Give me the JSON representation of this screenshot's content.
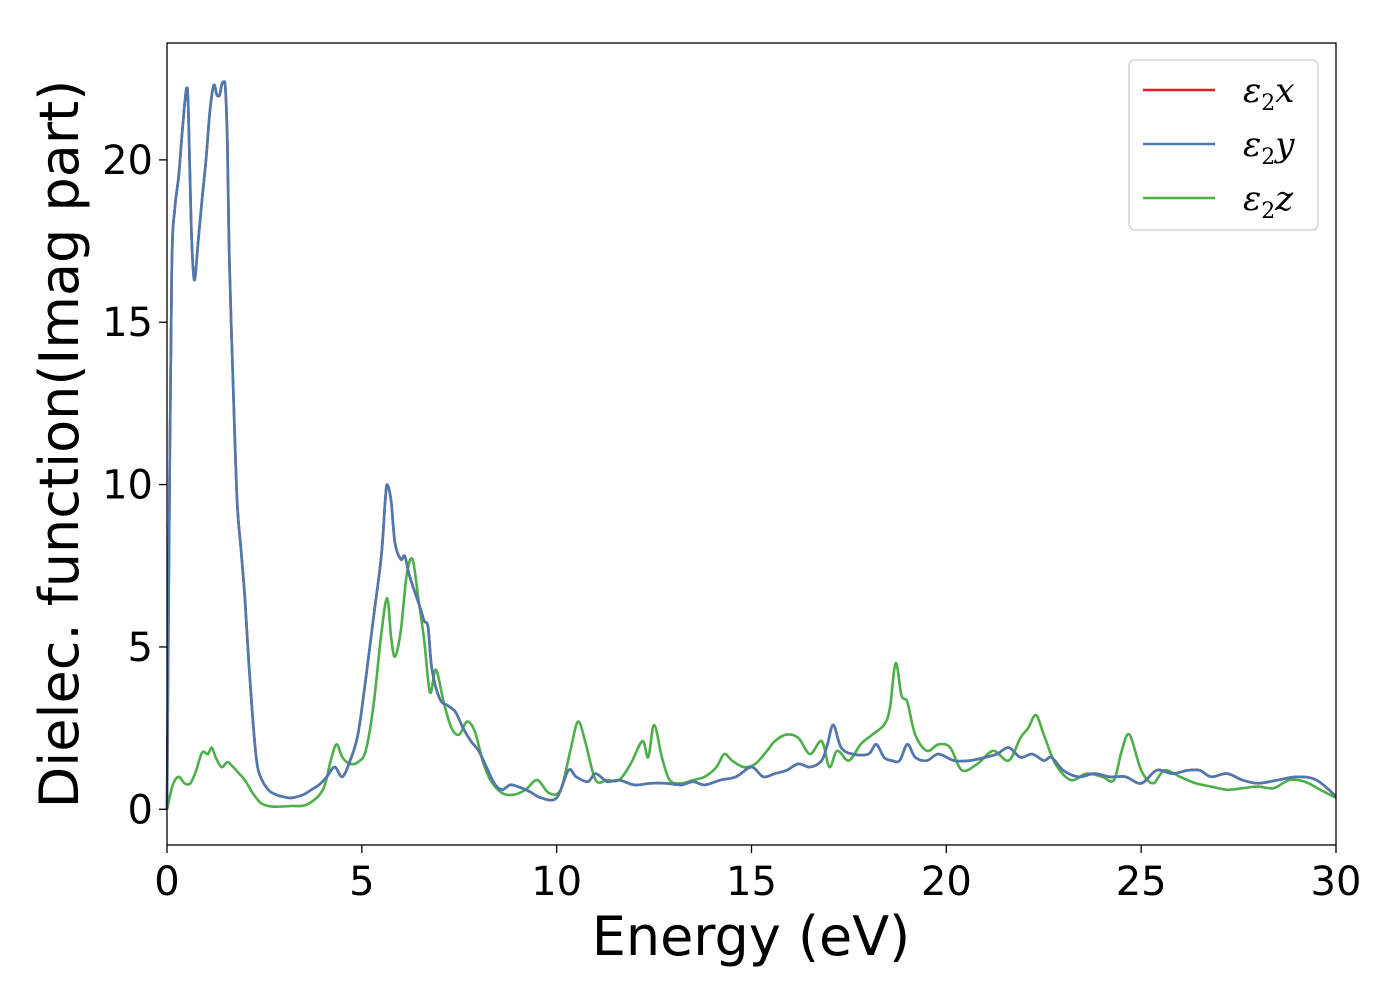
{
  "chart_data": {
    "type": "line",
    "xlabel": "Energy (eV)",
    "ylabel": "Dielec. function(Imag part)",
    "xlim": [
      0,
      30
    ],
    "ylim": [
      -1.1,
      23.6
    ],
    "xticks": [
      "0",
      "5",
      "10",
      "15",
      "20",
      "25",
      "30"
    ],
    "yticks": [
      "0",
      "5",
      "10",
      "15",
      "20"
    ],
    "grid": false,
    "legend_position": "top-right",
    "series": [
      {
        "name": "ε2x",
        "legend_base": "ε",
        "legend_sub": "2",
        "legend_suffix": "x",
        "color": "#e41a1c",
        "x": [
          0,
          0.05,
          0.12,
          0.2,
          0.3,
          0.4,
          0.5,
          0.55,
          0.62,
          0.7,
          0.8,
          0.9,
          1.0,
          1.1,
          1.2,
          1.28,
          1.35,
          1.4,
          1.45,
          1.5,
          1.55,
          1.6,
          1.7,
          1.8,
          1.9,
          2.0,
          2.1,
          2.2,
          2.3,
          2.4,
          2.6,
          2.8,
          3.0,
          3.2,
          3.5,
          3.7,
          3.9,
          4.1,
          4.3,
          4.5,
          4.7,
          4.9,
          5.1,
          5.3,
          5.5,
          5.6,
          5.65,
          5.75,
          5.85,
          6.0,
          6.1,
          6.2,
          6.3,
          6.5,
          6.6,
          6.7,
          6.8,
          7.0,
          7.2,
          7.4,
          7.6,
          7.8,
          8.0,
          8.2,
          8.4,
          8.6,
          8.8,
          9.0,
          9.3,
          9.6,
          10.0,
          10.3,
          10.5,
          10.8,
          11.0,
          11.3,
          11.6,
          12.0,
          12.4,
          12.8,
          13.2,
          13.5,
          13.8,
          14.2,
          14.6,
          15.0,
          15.3,
          15.6,
          15.9,
          16.2,
          16.5,
          16.8,
          16.95,
          17.1,
          17.3,
          17.6,
          18.0,
          18.2,
          18.4,
          18.6,
          18.8,
          19.0,
          19.2,
          19.5,
          19.8,
          20.2,
          20.6,
          21.0,
          21.3,
          21.6,
          21.9,
          22.2,
          22.5,
          22.7,
          23.0,
          23.4,
          23.8,
          24.2,
          24.6,
          25.0,
          25.4,
          25.8,
          26.2,
          26.5,
          26.8,
          27.2,
          27.6,
          28.0,
          28.5,
          29.0,
          29.5,
          30.0
        ],
        "values": [
          0,
          7.5,
          16.5,
          18.5,
          19.5,
          21.0,
          22.2,
          21.5,
          18.0,
          16.3,
          17.5,
          18.8,
          20.0,
          21.5,
          22.3,
          22.0,
          22.0,
          22.3,
          22.4,
          22.2,
          20.5,
          17.0,
          13.0,
          9.5,
          8.0,
          6.5,
          4.5,
          2.8,
          1.5,
          1.0,
          0.6,
          0.45,
          0.38,
          0.35,
          0.45,
          0.6,
          0.75,
          1.0,
          1.3,
          1.0,
          1.5,
          2.3,
          4.0,
          5.9,
          7.8,
          9.5,
          10.0,
          9.5,
          8.2,
          7.7,
          7.8,
          7.3,
          6.9,
          6.2,
          5.8,
          5.6,
          4.3,
          3.4,
          3.2,
          3.0,
          2.5,
          2.1,
          1.8,
          1.3,
          0.8,
          0.6,
          0.75,
          0.7,
          0.55,
          0.35,
          0.35,
          1.2,
          1.0,
          0.85,
          1.1,
          0.85,
          0.9,
          0.75,
          0.8,
          0.8,
          0.75,
          0.85,
          0.75,
          0.9,
          1.0,
          1.3,
          1.0,
          1.1,
          1.2,
          1.4,
          1.3,
          1.5,
          2.0,
          2.6,
          1.9,
          1.7,
          1.7,
          2.0,
          1.6,
          1.5,
          1.5,
          2.0,
          1.6,
          1.5,
          1.7,
          1.5,
          1.5,
          1.6,
          1.7,
          1.9,
          1.6,
          1.7,
          1.5,
          1.6,
          1.2,
          1.0,
          1.1,
          1.0,
          1.0,
          0.8,
          1.2,
          1.1,
          1.2,
          1.2,
          1.0,
          1.1,
          0.9,
          0.8,
          0.9,
          1.0,
          0.9,
          0.4
        ]
      },
      {
        "name": "ε2y",
        "legend_base": "ε",
        "legend_sub": "2",
        "legend_suffix": "y",
        "color": "#4a7ab0",
        "x": [
          0,
          0.05,
          0.12,
          0.2,
          0.3,
          0.4,
          0.5,
          0.55,
          0.62,
          0.7,
          0.8,
          0.9,
          1.0,
          1.1,
          1.2,
          1.28,
          1.35,
          1.4,
          1.45,
          1.5,
          1.55,
          1.6,
          1.7,
          1.8,
          1.9,
          2.0,
          2.1,
          2.2,
          2.3,
          2.4,
          2.6,
          2.8,
          3.0,
          3.2,
          3.5,
          3.7,
          3.9,
          4.1,
          4.3,
          4.5,
          4.7,
          4.9,
          5.1,
          5.3,
          5.5,
          5.6,
          5.65,
          5.75,
          5.85,
          6.0,
          6.1,
          6.2,
          6.3,
          6.5,
          6.6,
          6.7,
          6.8,
          7.0,
          7.2,
          7.4,
          7.6,
          7.8,
          8.0,
          8.2,
          8.4,
          8.6,
          8.8,
          9.0,
          9.3,
          9.6,
          10.0,
          10.3,
          10.5,
          10.8,
          11.0,
          11.3,
          11.6,
          12.0,
          12.4,
          12.8,
          13.2,
          13.5,
          13.8,
          14.2,
          14.6,
          15.0,
          15.3,
          15.6,
          15.9,
          16.2,
          16.5,
          16.8,
          16.95,
          17.1,
          17.3,
          17.6,
          18.0,
          18.2,
          18.4,
          18.6,
          18.8,
          19.0,
          19.2,
          19.5,
          19.8,
          20.2,
          20.6,
          21.0,
          21.3,
          21.6,
          21.9,
          22.2,
          22.5,
          22.7,
          23.0,
          23.4,
          23.8,
          24.2,
          24.6,
          25.0,
          25.4,
          25.8,
          26.2,
          26.5,
          26.8,
          27.2,
          27.6,
          28.0,
          28.5,
          29.0,
          29.5,
          30.0
        ],
        "values": [
          0,
          7.5,
          16.5,
          18.5,
          19.5,
          21.0,
          22.2,
          21.5,
          18.0,
          16.3,
          17.5,
          18.8,
          20.0,
          21.5,
          22.3,
          22.0,
          22.0,
          22.3,
          22.4,
          22.2,
          20.5,
          17.0,
          13.0,
          9.5,
          8.0,
          6.5,
          4.5,
          2.8,
          1.5,
          1.0,
          0.6,
          0.45,
          0.38,
          0.35,
          0.45,
          0.6,
          0.75,
          1.0,
          1.3,
          1.0,
          1.5,
          2.3,
          4.0,
          5.9,
          7.8,
          9.5,
          10.0,
          9.5,
          8.2,
          7.7,
          7.8,
          7.3,
          6.9,
          6.2,
          5.8,
          5.6,
          4.3,
          3.4,
          3.2,
          3.0,
          2.5,
          2.1,
          1.8,
          1.3,
          0.8,
          0.6,
          0.75,
          0.7,
          0.55,
          0.35,
          0.35,
          1.2,
          1.0,
          0.85,
          1.1,
          0.85,
          0.9,
          0.75,
          0.8,
          0.8,
          0.75,
          0.85,
          0.75,
          0.9,
          1.0,
          1.3,
          1.0,
          1.1,
          1.2,
          1.4,
          1.3,
          1.5,
          2.0,
          2.6,
          1.9,
          1.7,
          1.7,
          2.0,
          1.6,
          1.5,
          1.5,
          2.0,
          1.6,
          1.5,
          1.7,
          1.5,
          1.5,
          1.6,
          1.7,
          1.9,
          1.6,
          1.7,
          1.5,
          1.6,
          1.2,
          1.0,
          1.1,
          1.0,
          1.0,
          0.8,
          1.2,
          1.1,
          1.2,
          1.2,
          1.0,
          1.1,
          0.9,
          0.8,
          0.9,
          1.0,
          0.9,
          0.4
        ]
      },
      {
        "name": "ε2z",
        "legend_base": "ε",
        "legend_sub": "2",
        "legend_suffix": "z",
        "color": "#4daf4a",
        "x": [
          0,
          0.15,
          0.3,
          0.45,
          0.6,
          0.75,
          0.9,
          1.05,
          1.15,
          1.25,
          1.4,
          1.55,
          1.7,
          1.85,
          2.0,
          2.2,
          2.4,
          2.6,
          2.8,
          3.2,
          3.6,
          4.0,
          4.2,
          4.35,
          4.5,
          4.7,
          4.9,
          5.1,
          5.3,
          5.5,
          5.65,
          5.75,
          5.85,
          6.0,
          6.15,
          6.3,
          6.45,
          6.6,
          6.75,
          6.9,
          7.1,
          7.3,
          7.5,
          7.7,
          7.9,
          8.1,
          8.3,
          8.6,
          8.9,
          9.2,
          9.5,
          9.8,
          10.1,
          10.35,
          10.55,
          10.75,
          11.0,
          11.3,
          11.6,
          11.9,
          12.2,
          12.35,
          12.5,
          12.7,
          12.9,
          13.2,
          13.5,
          13.8,
          14.1,
          14.3,
          14.5,
          14.8,
          15.1,
          15.4,
          15.6,
          15.9,
          16.2,
          16.5,
          16.8,
          17.0,
          17.2,
          17.5,
          17.8,
          18.1,
          18.4,
          18.55,
          18.7,
          18.85,
          19.0,
          19.2,
          19.5,
          19.8,
          20.1,
          20.4,
          20.8,
          21.2,
          21.6,
          21.9,
          22.1,
          22.3,
          22.5,
          22.8,
          23.2,
          23.6,
          24.0,
          24.3,
          24.5,
          24.7,
          25.0,
          25.3,
          25.6,
          26.0,
          26.4,
          26.8,
          27.2,
          27.6,
          28.0,
          28.4,
          28.8,
          29.2,
          29.6,
          30.0
        ],
        "values": [
          0,
          0.75,
          1.0,
          0.8,
          0.8,
          1.2,
          1.75,
          1.7,
          1.9,
          1.6,
          1.3,
          1.45,
          1.3,
          1.1,
          0.9,
          0.5,
          0.2,
          0.1,
          0.08,
          0.1,
          0.15,
          0.6,
          1.5,
          2.0,
          1.6,
          1.4,
          1.45,
          1.8,
          3.2,
          5.4,
          6.5,
          5.3,
          4.7,
          5.5,
          7.2,
          7.7,
          6.5,
          5.2,
          3.6,
          4.3,
          3.3,
          2.5,
          2.3,
          2.7,
          2.4,
          1.5,
          0.9,
          0.5,
          0.45,
          0.6,
          0.9,
          0.5,
          0.6,
          1.8,
          2.7,
          2.0,
          0.9,
          0.9,
          0.9,
          1.4,
          2.1,
          1.6,
          2.6,
          1.6,
          0.9,
          0.8,
          0.9,
          1.0,
          1.3,
          1.7,
          1.5,
          1.3,
          1.4,
          1.8,
          2.1,
          2.3,
          2.2,
          1.7,
          2.1,
          1.3,
          1.8,
          1.5,
          2.0,
          2.3,
          2.6,
          3.1,
          4.5,
          3.5,
          3.3,
          2.3,
          1.8,
          2.0,
          1.9,
          1.2,
          1.4,
          1.8,
          1.5,
          2.2,
          2.5,
          2.9,
          2.3,
          1.4,
          0.9,
          1.1,
          1.0,
          0.9,
          1.8,
          2.3,
          1.2,
          0.8,
          1.2,
          1.0,
          0.8,
          0.7,
          0.6,
          0.65,
          0.7,
          0.65,
          0.9,
          0.85,
          0.6,
          0.35
        ]
      }
    ]
  }
}
